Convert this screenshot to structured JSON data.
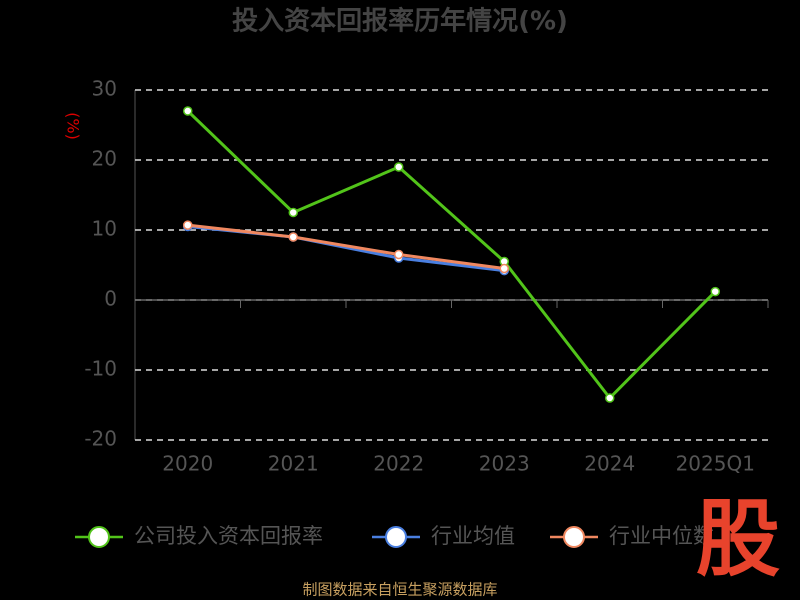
{
  "chart_data": {
    "type": "line",
    "title": "投入资本回报率历年情况(%)",
    "y_label": "(%)",
    "categories": [
      "2020",
      "2021",
      "2022",
      "2023",
      "2024",
      "2025Q1"
    ],
    "series": [
      {
        "name": "公司投入资本回报率",
        "color": "#52c41a",
        "values": [
          27,
          12.5,
          19,
          5.5,
          -14,
          1.2
        ]
      },
      {
        "name": "行业均值",
        "color": "#4a7fe0",
        "values": [
          10.5,
          9,
          6,
          4.2,
          null,
          null
        ]
      },
      {
        "name": "行业中位数",
        "color": "#f08860",
        "values": [
          10.7,
          9,
          6.5,
          4.5,
          null,
          null
        ]
      }
    ],
    "ylim": [
      -20,
      30
    ],
    "yticks": [
      -20,
      -10,
      0,
      10,
      20,
      30
    ],
    "grid": true,
    "source": "制图数据来自恒生聚源数据库",
    "logo": "股"
  }
}
